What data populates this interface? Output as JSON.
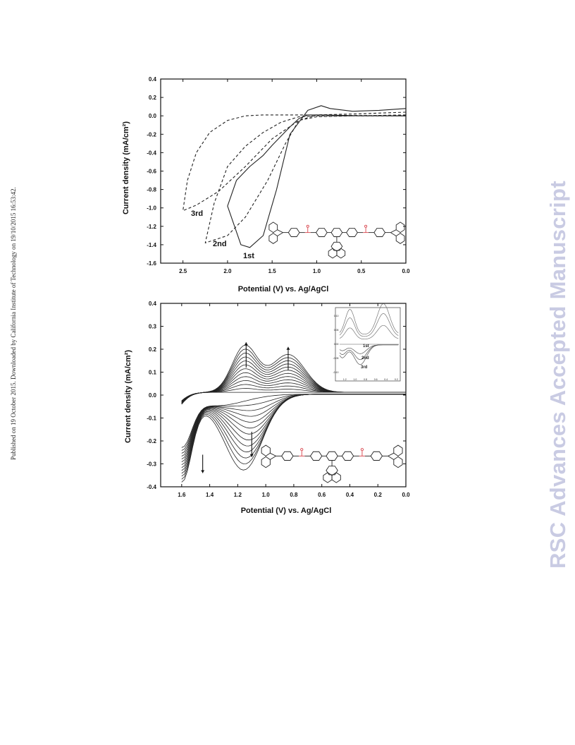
{
  "side_note": "Published on 19 October 2015. Downloaded by California Institute of Technology on 19/10/2015 16:53:42.",
  "watermark": "RSC Advances Accepted Manuscript",
  "colors": {
    "axis": "#111111",
    "curve": "#333333",
    "watermark": "#c9cbe3",
    "linker": "#d8434b"
  },
  "icons": [
    "molecular-structure-icon"
  ],
  "chart_data": [
    {
      "type": "line",
      "xlabel": "Potential (V) vs. Ag/AgCl",
      "ylabel": "Current density (mA/cm²)",
      "xlim": [
        2.75,
        0.0
      ],
      "ylim": [
        -1.6,
        0.4
      ],
      "x_reversed": true,
      "xticks": [
        "2.5",
        "2.0",
        "1.5",
        "1.0",
        "0.5",
        "0.0"
      ],
      "yticks": [
        "0.4",
        "0.2",
        "0.0",
        "-0.2",
        "-0.4",
        "-0.6",
        "-0.8",
        "-1.0",
        "-1.2",
        "-1.4",
        "-1.6"
      ],
      "annotations": [
        "1st",
        "2nd",
        "3rd"
      ],
      "grid": false,
      "series": [
        {
          "name": "1st",
          "style": "solid",
          "anodic": [
            [
              0.0,
              0.08
            ],
            [
              0.3,
              0.06
            ],
            [
              0.6,
              0.05
            ],
            [
              0.85,
              0.08
            ],
            [
              0.95,
              0.11
            ],
            [
              1.1,
              0.06
            ],
            [
              1.3,
              -0.2
            ],
            [
              1.45,
              -0.8
            ],
            [
              1.6,
              -1.3
            ],
            [
              1.75,
              -1.43
            ],
            [
              1.85,
              -1.4
            ],
            [
              2.0,
              -0.98
            ]
          ],
          "cathodic": [
            [
              2.0,
              -0.98
            ],
            [
              1.9,
              -0.7
            ],
            [
              1.75,
              -0.55
            ],
            [
              1.6,
              -0.43
            ],
            [
              1.5,
              -0.32
            ],
            [
              1.3,
              -0.12
            ],
            [
              1.2,
              -0.03
            ],
            [
              1.1,
              0.01
            ],
            [
              0.9,
              0.01
            ],
            [
              0.5,
              0.0
            ],
            [
              0.0,
              0.0
            ]
          ]
        },
        {
          "name": "2nd",
          "style": "dashed",
          "anodic": [
            [
              0.0,
              0.04
            ],
            [
              0.6,
              0.02
            ],
            [
              1.0,
              0.01
            ],
            [
              1.2,
              -0.05
            ],
            [
              1.35,
              -0.3
            ],
            [
              1.55,
              -0.7
            ],
            [
              1.8,
              -1.1
            ],
            [
              2.0,
              -1.3
            ],
            [
              2.25,
              -1.38
            ]
          ],
          "cathodic": [
            [
              2.25,
              -1.38
            ],
            [
              2.15,
              -0.95
            ],
            [
              2.0,
              -0.55
            ],
            [
              1.8,
              -0.33
            ],
            [
              1.6,
              -0.18
            ],
            [
              1.4,
              -0.07
            ],
            [
              1.2,
              -0.01
            ],
            [
              1.0,
              0.0
            ],
            [
              0.0,
              0.0
            ]
          ]
        },
        {
          "name": "3rd",
          "style": "dashed",
          "anodic": [
            [
              0.0,
              0.01
            ],
            [
              0.6,
              0.0
            ],
            [
              1.0,
              -0.01
            ],
            [
              1.2,
              -0.05
            ],
            [
              1.5,
              -0.25
            ],
            [
              1.8,
              -0.55
            ],
            [
              2.1,
              -0.82
            ],
            [
              2.35,
              -0.97
            ],
            [
              2.5,
              -1.03
            ]
          ],
          "cathodic": [
            [
              2.5,
              -1.03
            ],
            [
              2.45,
              -0.7
            ],
            [
              2.35,
              -0.4
            ],
            [
              2.2,
              -0.18
            ],
            [
              2.0,
              -0.05
            ],
            [
              1.8,
              0.0
            ],
            [
              1.6,
              0.01
            ],
            [
              1.2,
              0.01
            ],
            [
              0.0,
              0.0
            ]
          ]
        }
      ]
    },
    {
      "type": "line",
      "xlabel": "Potential (V) vs. Ag/AgCl",
      "ylabel": "Current density (mA/cm²)",
      "xlim": [
        1.75,
        0.0
      ],
      "ylim": [
        -0.4,
        0.4
      ],
      "x_reversed": true,
      "xticks": [
        "1.6",
        "1.4",
        "1.2",
        "1.0",
        "0.8",
        "0.6",
        "0.4",
        "0.2",
        "0.0"
      ],
      "yticks": [
        "0.4",
        "0.3",
        "0.2",
        "0.1",
        "0.0",
        "-0.1",
        "-0.2",
        "-0.3",
        "-0.4"
      ],
      "grid": false,
      "cycles": 13,
      "description_peaks": {
        "anodic_peak_1_v": 1.14,
        "anodic_peak_2_v": 0.84,
        "cathodic_peak_v": 1.1
      },
      "first_cycle": {
        "anodic_peak1_mA": 0.0,
        "cathodic_end_mA": -0.21
      },
      "last_cycle": {
        "anodic_peak1_mA": 0.2,
        "anodic_peak2_mA": 0.18,
        "cathodic_peak_mA": -0.3,
        "end_current_mA": -0.36
      },
      "arrows": [
        "up at 1.14 V",
        "up at 0.84 V",
        "down at 1.1 V",
        "down at 1.45 V"
      ],
      "inset": {
        "xticks": [
          "1.2",
          "1.0",
          "0.8",
          "0.6",
          "0.4",
          "0.2"
        ],
        "yticks": [
          "0.10",
          "0.05",
          "0.00",
          "-0.05",
          "-0.10"
        ],
        "labels": [
          "1st",
          "2nd",
          "3rd"
        ]
      }
    }
  ]
}
